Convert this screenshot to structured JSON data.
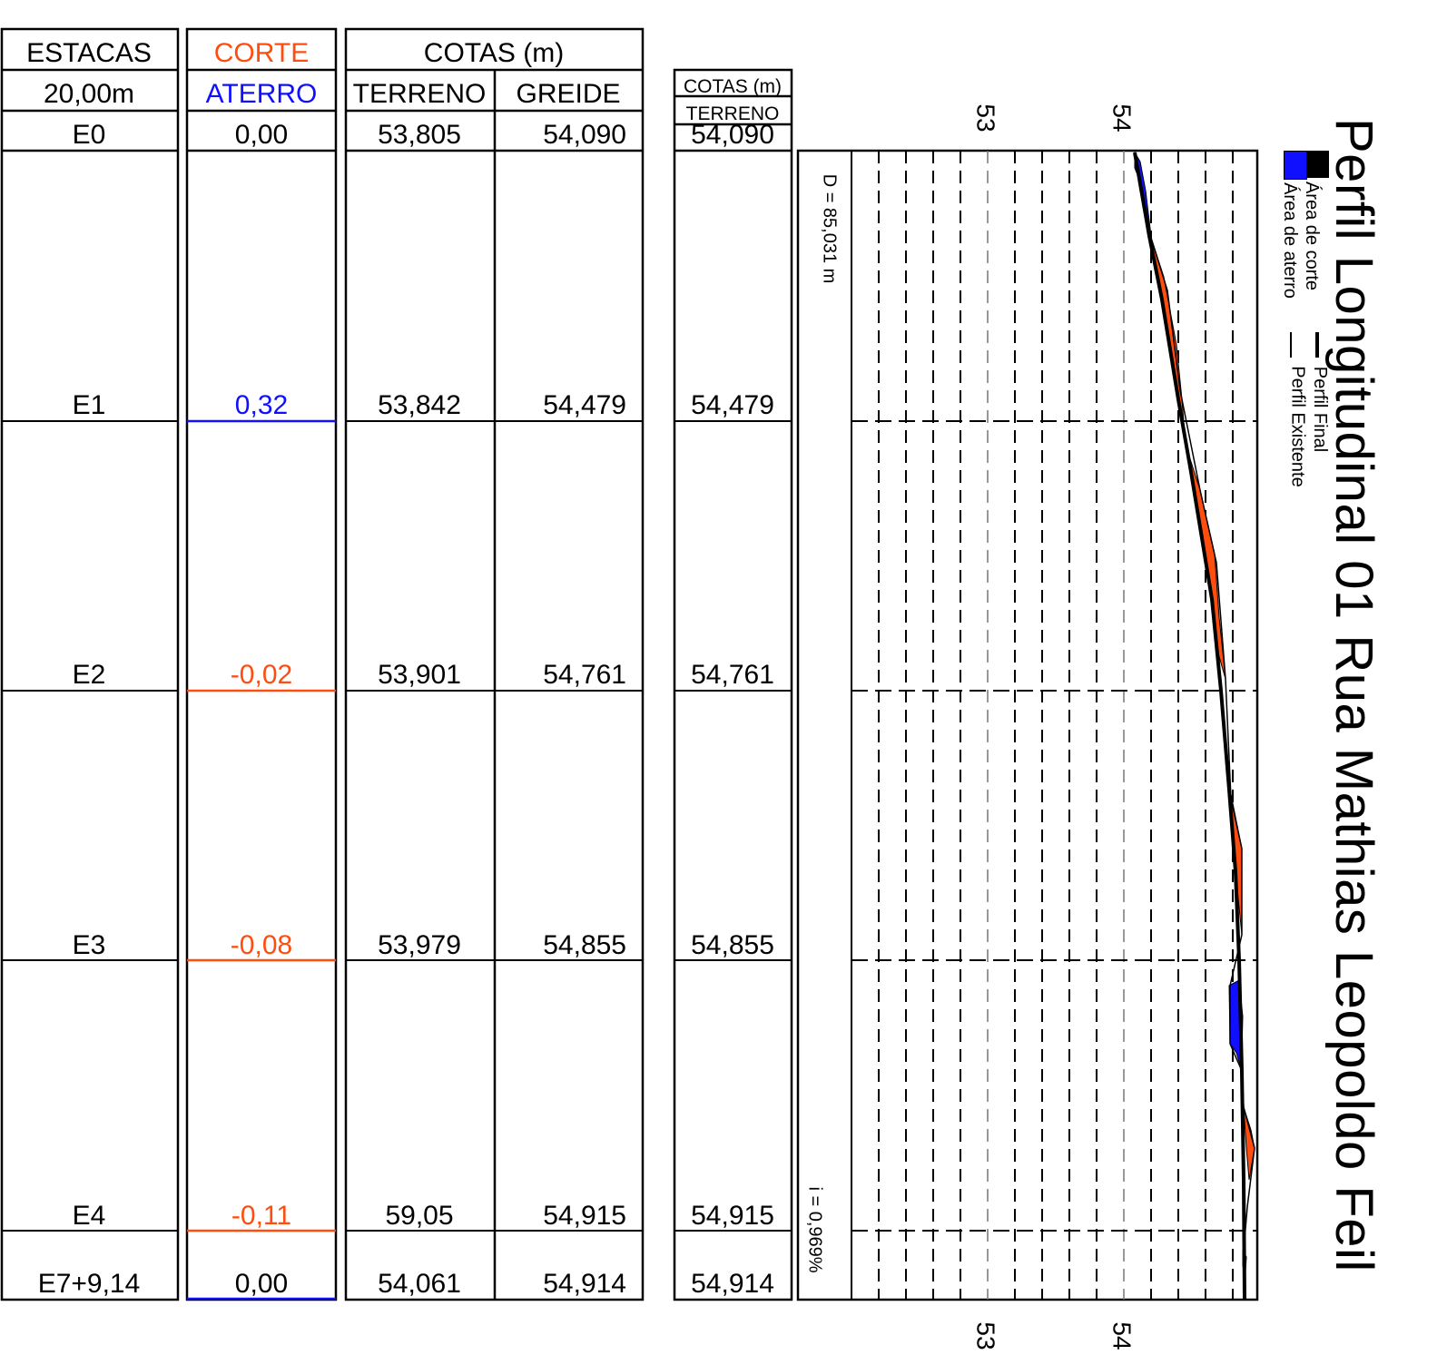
{
  "title": "Perfil Longitudinal 01 Rua Mathias Leopoldo Feil",
  "colors": {
    "corte": "#ff4d10",
    "aterro": "#1010ff",
    "line": "#000000"
  },
  "table": {
    "estacas_header": "ESTACAS",
    "estacas_subheader": "20,00m",
    "corte_header": "CORTE",
    "aterro_header": "ATERRO",
    "cotas_header": "COTAS (m)",
    "terreno_header": "TERRENO",
    "greide_header": "GREIDE",
    "rows": [
      {
        "estaca": "E0",
        "corte_aterro": "0,00",
        "kind": "none",
        "terreno": "53,805",
        "greide": "54,090",
        "cota_terreno": "54,090"
      },
      {
        "estaca": "E1",
        "corte_aterro": "0,32",
        "kind": "aterro",
        "terreno": "53,842",
        "greide": "54,479",
        "cota_terreno": "54,479"
      },
      {
        "estaca": "E2",
        "corte_aterro": "-0,02",
        "kind": "corte",
        "terreno": "53,901",
        "greide": "54,761",
        "cota_terreno": "54,761"
      },
      {
        "estaca": "E3",
        "corte_aterro": "-0,08",
        "kind": "corte",
        "terreno": "53,979",
        "greide": "54,855",
        "cota_terreno": "54,855"
      },
      {
        "estaca": "E4",
        "corte_aterro": "-0,11",
        "kind": "corte",
        "terreno": "59,05",
        "greide": "54,915",
        "cota_terreno": "54,915"
      },
      {
        "estaca": "E7+9,14",
        "corte_aterro": "0,00",
        "kind": "aterro",
        "terreno": "54,061",
        "greide": "54,914",
        "cota_terreno": "54,914"
      }
    ]
  },
  "side_table": {
    "cotas_header": "COTAS (m)",
    "terreno_header": "TERRENO"
  },
  "profile": {
    "distance_label": "D = 85,031 m",
    "slope_label": "i = 0,969%",
    "axis_labels": [
      "53",
      "54"
    ],
    "axis_labels_bottom": [
      "53",
      "54"
    ]
  },
  "legend": {
    "corte_label": "Área de corte",
    "aterro_label": "Área de aterro",
    "perfil_final_label": "Perfil Final",
    "perfil_existente_label": "Perfil Existente"
  }
}
